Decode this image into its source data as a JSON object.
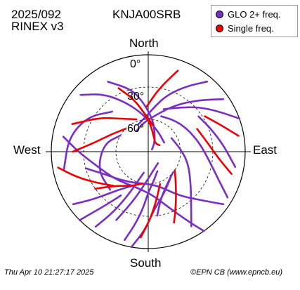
{
  "header": {
    "date_code": "2025/092",
    "format": "RINEX v3",
    "station": "KNJA00SRB"
  },
  "footer": {
    "timestamp": "Thu Apr 10 21:27:17 2025",
    "credit": "©EPN CB (www.epncb.eu)"
  },
  "chart_data": {
    "type": "polar-skyplot",
    "directions": {
      "north": "North",
      "south": "South",
      "east": "East",
      "west": "West"
    },
    "elevation_rings": [
      {
        "elevation": 0,
        "label": "0°"
      },
      {
        "elevation": 30,
        "label": "30°"
      },
      {
        "elevation": 60,
        "label": "60°"
      }
    ],
    "legend": [
      {
        "label": "GLO 2+ freq.",
        "color": "#7a2fc4"
      },
      {
        "label": "Single freq.",
        "color": "#ee0000"
      }
    ],
    "series": [
      {
        "legend_index": 0,
        "color": "#7a2fc4",
        "tracks": [
          [
            [
              318,
              40
            ],
            [
              300,
              25
            ],
            [
              280,
              15
            ],
            [
              258,
              10
            ]
          ],
          [
            [
              300,
              60
            ],
            [
              280,
              48
            ],
            [
              250,
              40
            ],
            [
              225,
              40
            ]
          ],
          [
            [
              330,
              15
            ],
            [
              345,
              30
            ],
            [
              355,
              45
            ],
            [
              8,
              60
            ],
            [
              20,
              72
            ],
            [
              35,
              80
            ],
            [
              60,
              86
            ]
          ],
          [
            [
              310,
              8
            ],
            [
              322,
              22
            ],
            [
              334,
              38
            ],
            [
              348,
              52
            ],
            [
              5,
              63
            ],
            [
              30,
              70
            ],
            [
              60,
              73
            ]
          ],
          [
            [
              255,
              30
            ],
            [
              242,
              45
            ],
            [
              228,
              52
            ],
            [
              205,
              58
            ],
            [
              180,
              60
            ],
            [
              160,
              55
            ],
            [
              145,
              40
            ],
            [
              130,
              18
            ],
            [
              125,
              5
            ]
          ],
          [
            [
              280,
              10
            ],
            [
              270,
              25
            ],
            [
              255,
              40
            ],
            [
              230,
              50
            ],
            [
              200,
              55
            ],
            [
              175,
              50
            ],
            [
              160,
              35
            ],
            [
              150,
              15
            ],
            [
              145,
              0
            ]
          ],
          [
            [
              205,
              20
            ],
            [
              198,
              40
            ],
            [
              190,
              55
            ],
            [
              180,
              65
            ],
            [
              165,
              72
            ],
            [
              140,
              76
            ]
          ],
          [
            [
              215,
              5
            ],
            [
              210,
              25
            ],
            [
              205,
              45
            ],
            [
              200,
              60
            ],
            [
              192,
              70
            ]
          ],
          [
            [
              195,
              5
            ],
            [
              190,
              22
            ],
            [
              185,
              38
            ],
            [
              180,
              52
            ],
            [
              170,
              62
            ],
            [
              155,
              70
            ]
          ],
          [
            [
              235,
              5
            ],
            [
              230,
              20
            ],
            [
              225,
              33
            ],
            [
              218,
              45
            ],
            [
              205,
              55
            ]
          ],
          [
            [
              172,
              30
            ],
            [
              165,
              45
            ],
            [
              150,
              55
            ],
            [
              130,
              60
            ]
          ],
          [
            [
              150,
              10
            ],
            [
              140,
              28
            ],
            [
              125,
              42
            ],
            [
              105,
              52
            ],
            [
              85,
              60
            ],
            [
              60,
              65
            ]
          ],
          [
            [
              120,
              5
            ],
            [
              110,
              22
            ],
            [
              95,
              35
            ],
            [
              80,
              42
            ],
            [
              60,
              48
            ],
            [
              40,
              52
            ],
            [
              20,
              55
            ]
          ],
          [
            [
              100,
              8
            ],
            [
              85,
              20
            ],
            [
              70,
              28
            ],
            [
              55,
              33
            ]
          ],
          [
            [
              40,
              5
            ],
            [
              30,
              20
            ],
            [
              18,
              35
            ],
            [
              8,
              48
            ],
            [
              355,
              58
            ],
            [
              340,
              63
            ]
          ],
          [
            [
              55,
              5
            ],
            [
              45,
              22
            ],
            [
              30,
              40
            ],
            [
              12,
              55
            ],
            [
              350,
              63
            ],
            [
              330,
              68
            ]
          ],
          [
            [
              70,
              0
            ],
            [
              60,
              15
            ],
            [
              48,
              28
            ],
            [
              35,
              40
            ],
            [
              20,
              48
            ]
          ],
          [
            [
              190,
              0
            ],
            [
              182,
              18
            ],
            [
              175,
              35
            ],
            [
              160,
              48
            ],
            [
              140,
              58
            ]
          ],
          [
            [
              225,
              0
            ],
            [
              222,
              15
            ],
            [
              218,
              28
            ],
            [
              212,
              42
            ]
          ]
        ]
      },
      {
        "legend_index": 1,
        "color": "#ee0000",
        "tracks": [
          [
            [
              355,
              55
            ],
            [
              5,
              65
            ],
            [
              20,
              75
            ],
            [
              40,
              80
            ],
            [
              60,
              78
            ]
          ],
          [
            [
              335,
              25
            ],
            [
              345,
              40
            ],
            [
              355,
              55
            ],
            [
              10,
              65
            ]
          ],
          [
            [
              290,
              15
            ],
            [
              305,
              35
            ],
            [
              320,
              50
            ],
            [
              340,
              58
            ]
          ],
          [
            [
              270,
              20
            ],
            [
              280,
              40
            ],
            [
              295,
              52
            ],
            [
              315,
              60
            ]
          ],
          [
            [
              235,
              30
            ],
            [
              225,
              45
            ],
            [
              205,
              55
            ],
            [
              190,
              60
            ]
          ],
          [
            [
              160,
              20
            ],
            [
              152,
              35
            ],
            [
              140,
              50
            ],
            [
              125,
              60
            ]
          ],
          [
            [
              185,
              10
            ],
            [
              178,
              28
            ],
            [
              170,
              45
            ],
            [
              160,
              58
            ]
          ],
          [
            [
              105,
              10
            ],
            [
              95,
              25
            ],
            [
              80,
              35
            ],
            [
              65,
              40
            ]
          ],
          [
            [
              80,
              5
            ],
            [
              70,
              18
            ],
            [
              58,
              28
            ]
          ],
          [
            [
              20,
              10
            ],
            [
              10,
              30
            ],
            [
              358,
              48
            ]
          ],
          [
            [
              260,
              5
            ],
            [
              250,
              20
            ],
            [
              238,
              35
            ],
            [
              225,
              45
            ]
          ]
        ]
      }
    ]
  }
}
